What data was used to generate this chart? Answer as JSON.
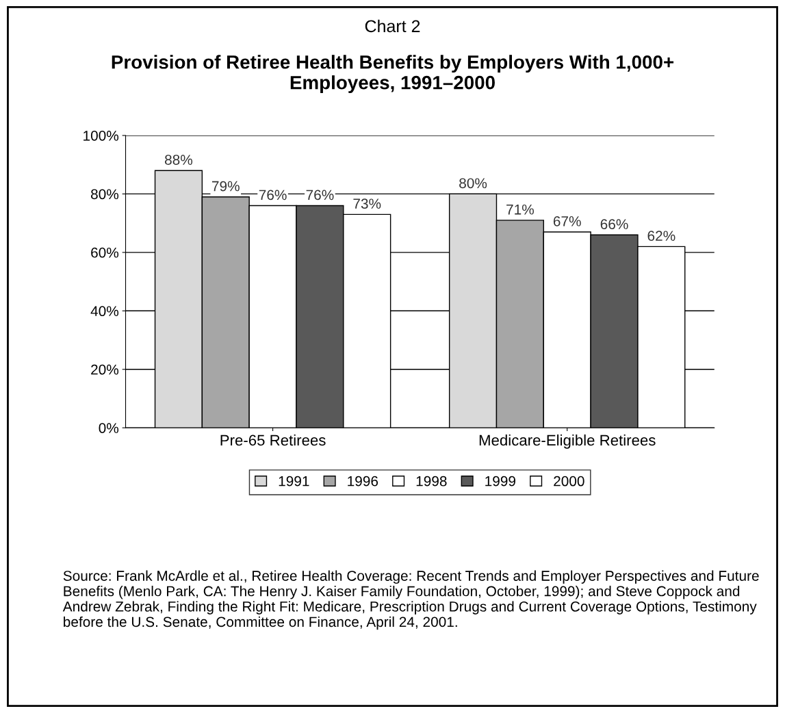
{
  "chart_data": {
    "type": "bar",
    "title": "Chart 2",
    "subtitle": "Provision of Retiree Health Benefits by Employers With 1,000+ Employees, 1991–2000",
    "categories": [
      "Pre-65 Retirees",
      "Medicare-Eligible Retirees"
    ],
    "series": [
      {
        "name": "1991",
        "color": "#d9d9d9",
        "values": [
          88,
          80
        ],
        "value_labels": [
          "88%",
          "80%"
        ]
      },
      {
        "name": "1996",
        "color": "#a6a6a6",
        "values": [
          79,
          71
        ],
        "value_labels": [
          "79%",
          "71%"
        ]
      },
      {
        "name": "1998",
        "color": "#ffffff",
        "values": [
          76,
          67
        ],
        "value_labels": [
          "76%",
          "67%"
        ]
      },
      {
        "name": "1999",
        "color": "#595959",
        "values": [
          76,
          66
        ],
        "value_labels": [
          "76%",
          "66%"
        ]
      },
      {
        "name": "2000",
        "color": "#ffffff",
        "values": [
          73,
          62
        ],
        "value_labels": [
          "73%",
          "62%"
        ]
      }
    ],
    "ylim": [
      0,
      100
    ],
    "yticks": [
      {
        "value": 0,
        "label": "0%"
      },
      {
        "value": 20,
        "label": "20%"
      },
      {
        "value": 40,
        "label": "40%"
      },
      {
        "value": 60,
        "label": "60%"
      },
      {
        "value": 80,
        "label": "80%"
      },
      {
        "value": 100,
        "label": "100%"
      }
    ],
    "grid": "y",
    "legend": "bottom",
    "annotations": [
      "Source: Frank McArdle et al., Retiree Health Coverage: Recent Trends and Employer Perspectives and Future Benefits (Menlo Park, CA: The Henry J. Kaiser Family Foundation, October, 1999); and Steve Coppock and Andrew Zebrak, Finding the Right Fit: Medicare, Prescription Drugs and Current Coverage Options, Testimony before the U.S. Senate, Committee on Finance, April 24, 2001."
    ]
  }
}
